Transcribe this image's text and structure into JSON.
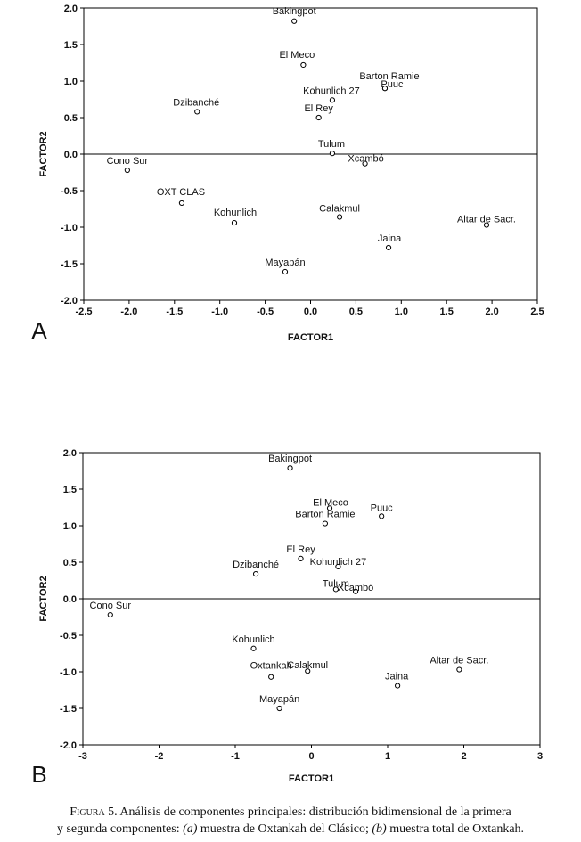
{
  "chart_data": [
    {
      "type": "scatter",
      "panel_label": "A",
      "xlabel": "FACTOR1",
      "ylabel": "FACTOR2",
      "xlim": [
        -2.5,
        2.5
      ],
      "ylim": [
        -2.0,
        2.0
      ],
      "x_ticks": [
        "-2.5",
        "-2.0",
        "-1.5",
        "-1.0",
        "-0.5",
        "0.0",
        "0.5",
        "1.0",
        "1.5",
        "2.0",
        "2.5"
      ],
      "y_ticks": [
        "2.0",
        "1.5",
        "1.0",
        "0.5",
        "0.0",
        "-0.5",
        "-1.0",
        "-1.5",
        "-2.0"
      ],
      "grid": false,
      "zero_line": "horizontal",
      "points": [
        {
          "label": "Bakingpot",
          "x": -0.18,
          "y": 1.82
        },
        {
          "label": "El Meco",
          "x": -0.08,
          "y": 1.22
        },
        {
          "label": "Barton Ramie",
          "x": 0.82,
          "y": 0.9
        },
        {
          "label": "Puuc",
          "x": 0.82,
          "y": 0.9
        },
        {
          "label": "Kohunlich 27",
          "x": 0.24,
          "y": 0.74
        },
        {
          "label": "El Rey",
          "x": 0.09,
          "y": 0.5
        },
        {
          "label": "Dzibanché",
          "x": -1.25,
          "y": 0.58
        },
        {
          "label": "Tulum",
          "x": 0.24,
          "y": 0.01
        },
        {
          "label": "Xcambó",
          "x": 0.6,
          "y": -0.13
        },
        {
          "label": "Cono Sur",
          "x": -2.02,
          "y": -0.22
        },
        {
          "label": "OXT CLAS",
          "x": -1.42,
          "y": -0.67
        },
        {
          "label": "Kohunlich",
          "x": -0.84,
          "y": -0.94
        },
        {
          "label": "Calakmul",
          "x": 0.32,
          "y": -0.86
        },
        {
          "label": "Altar de Sacr.",
          "x": 1.94,
          "y": -0.97
        },
        {
          "label": "Jaina",
          "x": 0.86,
          "y": -1.28
        },
        {
          "label": "Mayapán",
          "x": -0.28,
          "y": -1.61
        }
      ]
    },
    {
      "type": "scatter",
      "panel_label": "B",
      "xlabel": "FACTOR1",
      "ylabel": "FACTOR2",
      "xlim": [
        -3,
        3
      ],
      "ylim": [
        -2.0,
        2.0
      ],
      "x_ticks": [
        "-3",
        "-2",
        "-1",
        "0",
        "1",
        "2",
        "3"
      ],
      "y_ticks": [
        "2.0",
        "1.5",
        "1.0",
        "0.5",
        "0.0",
        "-0.5",
        "-1.0",
        "-1.5",
        "-2.0"
      ],
      "grid": false,
      "zero_line": "horizontal",
      "points": [
        {
          "label": "Bakingpot",
          "x": -0.28,
          "y": 1.79
        },
        {
          "label": "El Meco",
          "x": 0.24,
          "y": 1.24
        },
        {
          "label": "Puuc",
          "x": 0.92,
          "y": 1.13
        },
        {
          "label": "Barton Ramie",
          "x": 0.18,
          "y": 1.03
        },
        {
          "label": "El Rey",
          "x": -0.14,
          "y": 0.55
        },
        {
          "label": "Kohunlich 27",
          "x": 0.35,
          "y": 0.44
        },
        {
          "label": "Dzibanché",
          "x": -0.73,
          "y": 0.34
        },
        {
          "label": "Tulum",
          "x": 0.32,
          "y": 0.13
        },
        {
          "label": "Xcambó",
          "x": 0.58,
          "y": 0.1
        },
        {
          "label": "Cono Sur",
          "x": -2.64,
          "y": -0.22
        },
        {
          "label": "Kohunlich",
          "x": -0.76,
          "y": -0.68
        },
        {
          "label": "Calakmul",
          "x": -0.05,
          "y": -0.99
        },
        {
          "label": "Oxtankah",
          "x": -0.53,
          "y": -1.07
        },
        {
          "label": "Altar de Sacr.",
          "x": 1.94,
          "y": -0.97
        },
        {
          "label": "Jaina",
          "x": 1.13,
          "y": -1.19
        },
        {
          "label": "Mayapán",
          "x": -0.42,
          "y": -1.5
        }
      ]
    }
  ],
  "caption": {
    "figure_label": "Figura 5.",
    "line1_text": "Análisis de componentes principales: distribución bidimensional de la primera",
    "line2_start": "y segunda componentes: ",
    "part_a_label": "(a)",
    "part_a_text": " muestra de Oxtankah del Clásico; ",
    "part_b_label": "(b)",
    "part_b_text": " muestra total de Oxtankah."
  }
}
